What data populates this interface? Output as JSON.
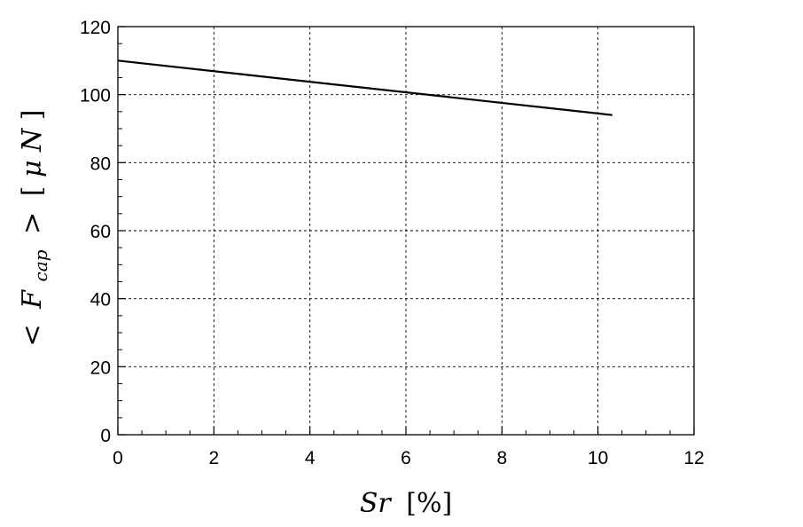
{
  "chart_data": {
    "type": "line",
    "title": "",
    "xlabel_parts": {
      "var": "Sr",
      "unit": "[%]"
    },
    "ylabel_parts": {
      "open": "<",
      "var": "F",
      "sub": "cap",
      "close": ">",
      "unit_open": "[",
      "unit_mu": "μ",
      "unit_var": "N",
      "unit_close": "]"
    },
    "xlim": [
      0,
      12
    ],
    "ylim": [
      0,
      120
    ],
    "xticks": [
      "0",
      "2",
      "4",
      "6",
      "8",
      "10",
      "12"
    ],
    "yticks": [
      "0",
      "20",
      "40",
      "60",
      "80",
      "100",
      "120"
    ],
    "grid": true,
    "grid_style": "dashed",
    "series": [
      {
        "color": "#000000",
        "x": [
          0,
          10.3
        ],
        "y": [
          110,
          94
        ]
      }
    ]
  }
}
